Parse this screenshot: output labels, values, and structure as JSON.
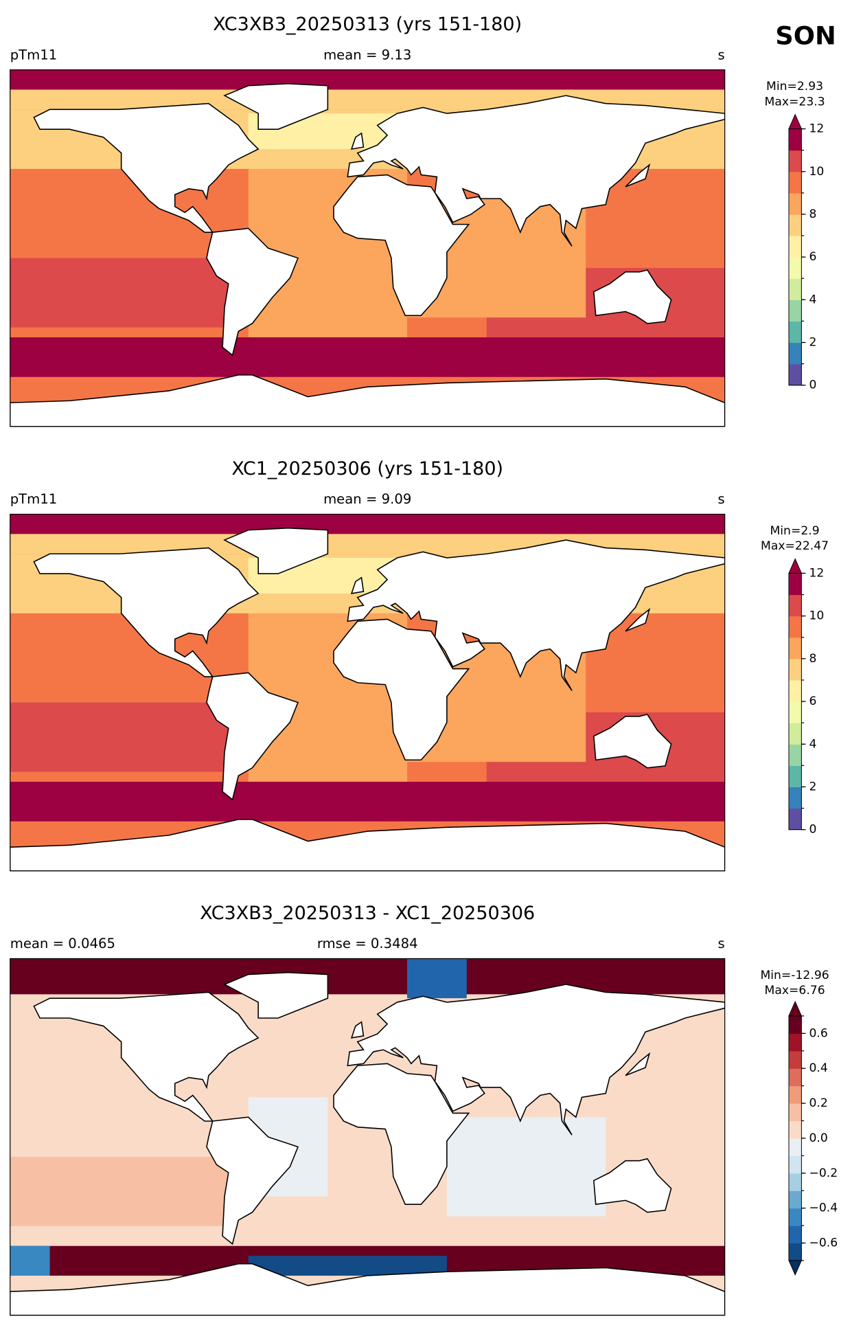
{
  "suptitle": "SON",
  "panels": [
    {
      "title": "XC3XB3_20250313 (yrs 151-180)",
      "left_label": "pTm11",
      "center_label": "mean = 9.13",
      "right_label": "s",
      "colorbar": {
        "min_label": "Min=2.93",
        "max_label": "Max=23.3",
        "lim": [
          0,
          12
        ],
        "ticks": [
          0,
          2,
          4,
          6,
          8,
          10,
          12
        ],
        "colors": [
          "#5e4fa2",
          "#3682ba",
          "#5cb7a9",
          "#98d5a4",
          "#d0ec9c",
          "#f3faad",
          "#fff0a6",
          "#fdd07f",
          "#fca55d",
          "#f47647",
          "#dc4a4c",
          "#9e0142"
        ],
        "extend": "max"
      }
    },
    {
      "title": "XC1_20250306 (yrs 151-180)",
      "left_label": "pTm11",
      "center_label": "mean = 9.09",
      "right_label": "s",
      "colorbar": {
        "min_label": "Min=2.9",
        "max_label": "Max=22.47",
        "lim": [
          0,
          12
        ],
        "ticks": [
          0,
          2,
          4,
          6,
          8,
          10,
          12
        ],
        "colors": [
          "#5e4fa2",
          "#3682ba",
          "#5cb7a9",
          "#98d5a4",
          "#d0ec9c",
          "#f3faad",
          "#fff0a6",
          "#fdd07f",
          "#fca55d",
          "#f47647",
          "#dc4a4c",
          "#9e0142"
        ],
        "extend": "max"
      }
    },
    {
      "title": "XC3XB3_20250313 - XC1_20250306",
      "left_label": "mean = 0.0465",
      "center_label": "rmse = 0.3484",
      "right_label": "s",
      "colorbar": {
        "min_label": "Min=-12.96",
        "max_label": "Max=6.76",
        "lim": [
          -0.7,
          0.7
        ],
        "ticks": [
          {
            "value": -0.6,
            "label": "−0.6"
          },
          {
            "value": -0.4,
            "label": "−0.4"
          },
          {
            "value": -0.2,
            "label": "−0.2"
          },
          {
            "value": 0,
            "label": "0.0"
          },
          0.2,
          0.4,
          0.6
        ],
        "colors": [
          "#134b87",
          "#2166ac",
          "#3a88c1",
          "#6aaad0",
          "#a7cfe4",
          "#d1e5f0",
          "#e9eff2",
          "#fadbc8",
          "#f7c0a4",
          "#f09c7b",
          "#dc6e5a",
          "#c43c3c",
          "#a11228",
          "#67001f"
        ],
        "under": "#053061",
        "over": "#67001f",
        "extend": "both"
      }
    }
  ]
}
